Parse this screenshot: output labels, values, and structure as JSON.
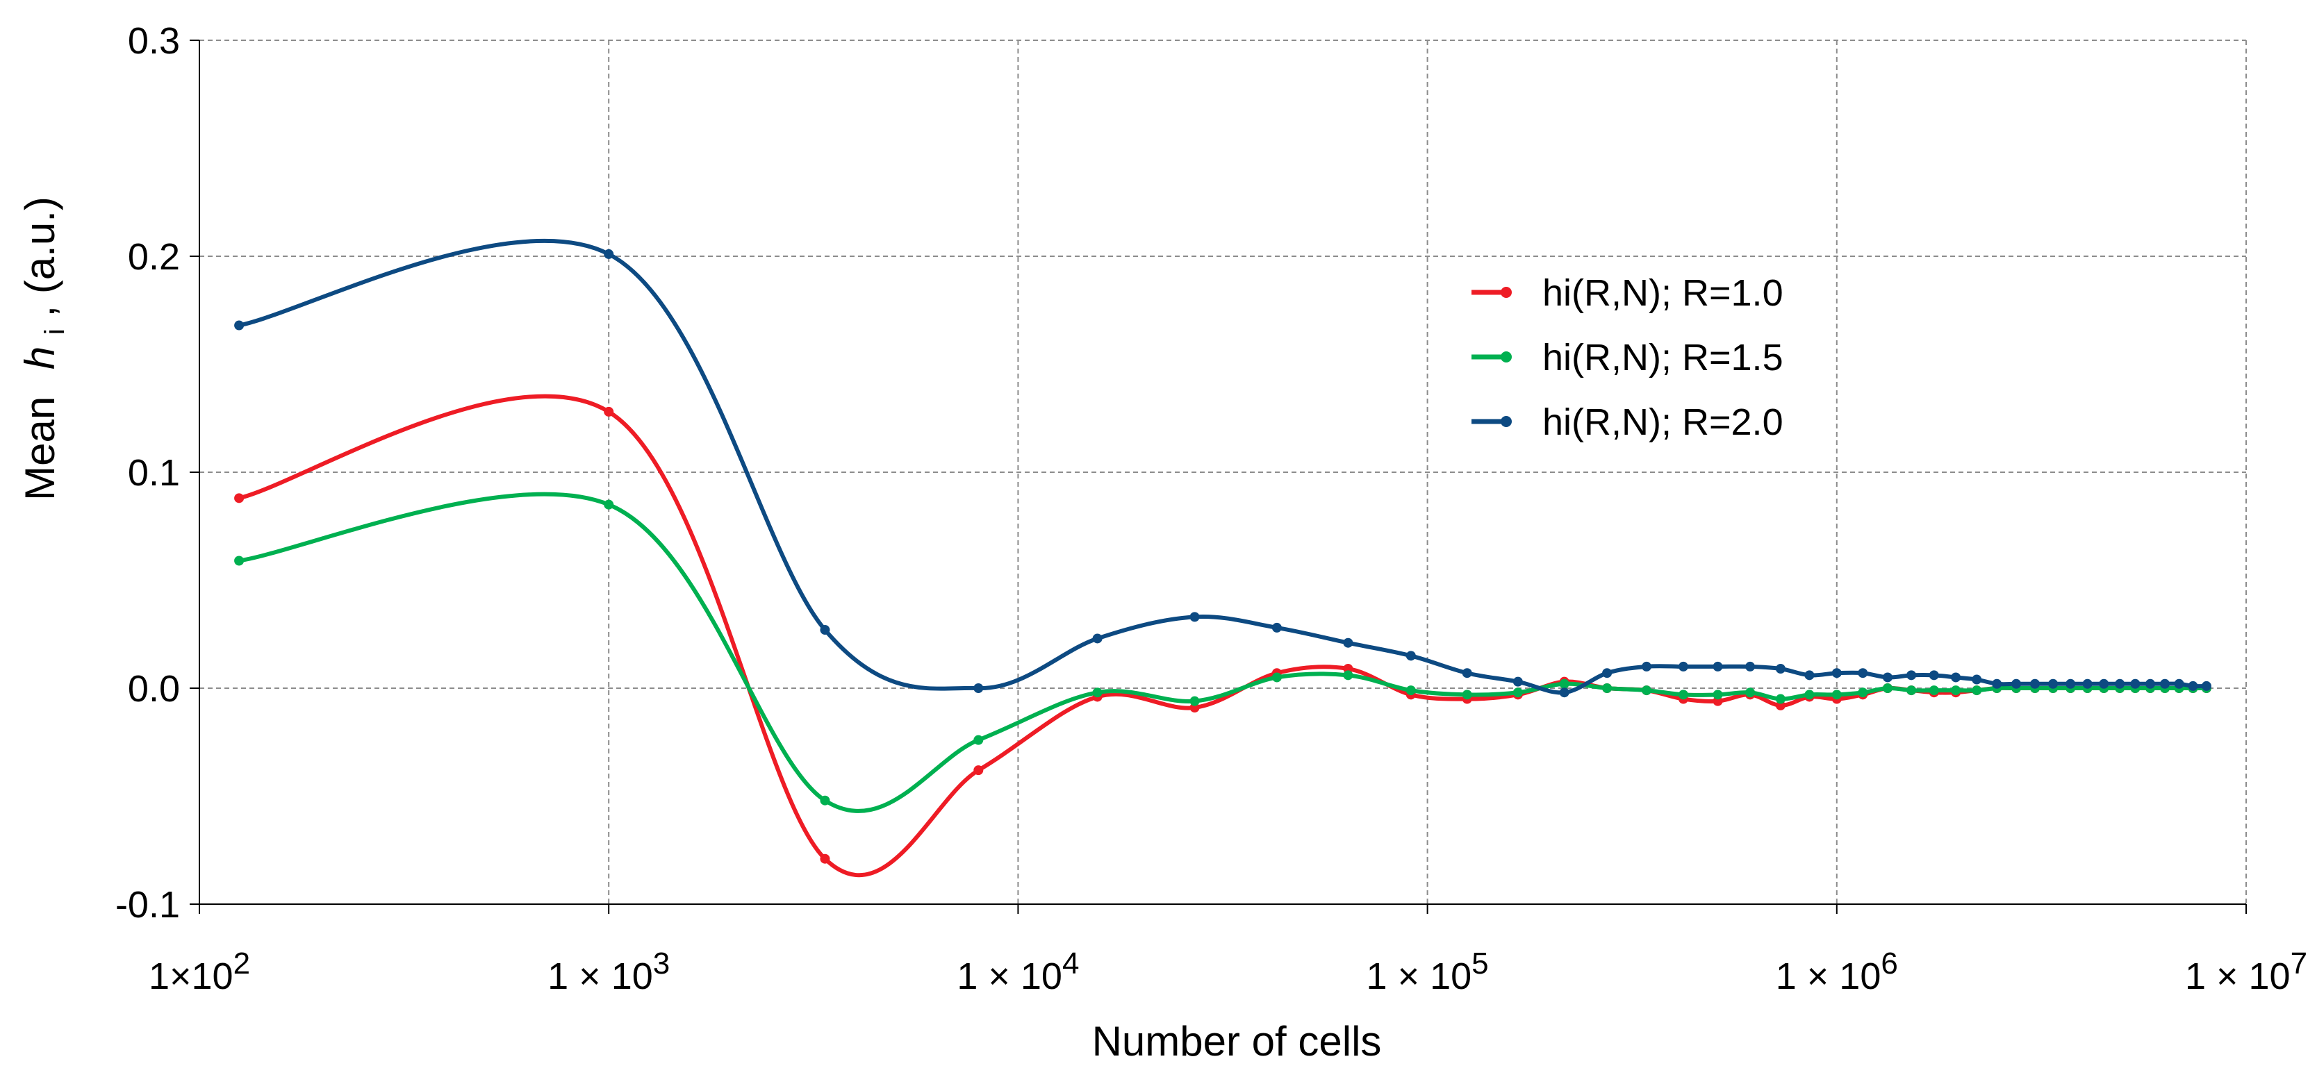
{
  "chart_data": {
    "type": "line",
    "title": "",
    "xlabel": "Number of cells",
    "ylabel_prefix": "Mean",
    "ylabel_symbol": "h",
    "ylabel_subscript": "i",
    "ylabel_suffix": ",  (a.u.)",
    "xscale": "log",
    "xlim": [
      100,
      10000000
    ],
    "ylim": [
      -0.1,
      0.3
    ],
    "x_ticks": [
      {
        "value": 100,
        "mant": "1×10",
        "exp": "2"
      },
      {
        "value": 1000,
        "mant": "1 × 10",
        "exp": "3"
      },
      {
        "value": 10000,
        "mant": "1 × 10",
        "exp": "4"
      },
      {
        "value": 100000,
        "mant": "1 × 10",
        "exp": "5"
      },
      {
        "value": 1000000,
        "mant": "1 × 10",
        "exp": "6"
      },
      {
        "value": 10000000,
        "mant": "1 × 10",
        "exp": "7"
      }
    ],
    "y_ticks": [
      {
        "value": -0.1,
        "label": "-0.1"
      },
      {
        "value": 0.0,
        "label": "0.0"
      },
      {
        "value": 0.1,
        "label": "0.1"
      },
      {
        "value": 0.2,
        "label": "0.2"
      },
      {
        "value": 0.3,
        "label": "0.3"
      }
    ],
    "grid": true,
    "legend_position": "right-center",
    "x": [
      125,
      1000,
      3375,
      8000,
      15625,
      27000,
      42875,
      64000,
      91125,
      125000,
      166375,
      216000,
      274625,
      343000,
      421875,
      512000,
      614125,
      729000,
      857375,
      1000000,
      1157625,
      1331000,
      1520875,
      1728000,
      1953125,
      2197000,
      2460375,
      2744000,
      3048625,
      3375000,
      3723875,
      4096000,
      4492125,
      4913000,
      5359375,
      5832000,
      6331625,
      6859000,
      7414875,
      8000000
    ],
    "series": [
      {
        "name": "hi(R,N); R=1.0",
        "color": "#ee1c25",
        "values": [
          0.088,
          0.128,
          -0.079,
          -0.038,
          -0.004,
          -0.009,
          0.007,
          0.009,
          -0.003,
          -0.005,
          -0.003,
          0.003,
          0.0,
          -0.001,
          -0.005,
          -0.006,
          -0.003,
          -0.008,
          -0.004,
          -0.005,
          -0.003,
          0.0,
          -0.001,
          -0.002,
          -0.002,
          -0.001,
          0.0,
          0.0,
          0.0,
          0.0,
          0.0,
          0.0,
          0.0,
          0.0,
          0.0,
          0.0,
          0.0,
          0.0,
          0.0,
          0.0
        ]
      },
      {
        "name": "hi(R,N); R=1.5",
        "color": "#00b050",
        "values": [
          0.059,
          0.085,
          -0.052,
          -0.024,
          -0.002,
          -0.006,
          0.005,
          0.006,
          -0.001,
          -0.003,
          -0.002,
          0.002,
          0.0,
          -0.001,
          -0.003,
          -0.003,
          -0.002,
          -0.005,
          -0.003,
          -0.003,
          -0.002,
          0.0,
          -0.001,
          -0.001,
          -0.001,
          -0.001,
          0.0,
          0.0,
          0.0,
          0.0,
          0.0,
          0.0,
          0.0,
          0.0,
          0.0,
          0.0,
          0.0,
          0.0,
          0.0,
          0.0
        ]
      },
      {
        "name": "hi(R,N); R=2.0",
        "color": "#0d4a82",
        "values": [
          0.168,
          0.201,
          0.027,
          0.0,
          0.023,
          0.033,
          0.028,
          0.021,
          0.015,
          0.007,
          0.003,
          -0.002,
          0.007,
          0.01,
          0.01,
          0.01,
          0.01,
          0.009,
          0.006,
          0.007,
          0.007,
          0.005,
          0.006,
          0.006,
          0.005,
          0.004,
          0.002,
          0.002,
          0.002,
          0.002,
          0.002,
          0.002,
          0.002,
          0.002,
          0.002,
          0.002,
          0.002,
          0.002,
          0.001,
          0.001
        ]
      }
    ]
  }
}
